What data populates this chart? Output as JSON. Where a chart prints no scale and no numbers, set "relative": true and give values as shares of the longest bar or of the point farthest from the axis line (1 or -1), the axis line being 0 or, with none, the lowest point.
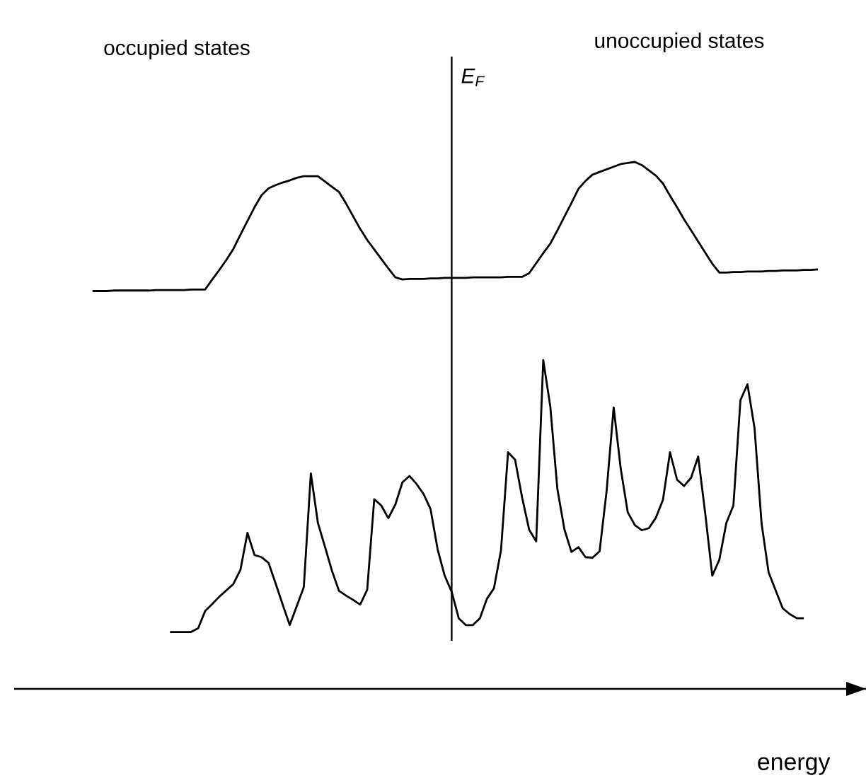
{
  "chart_data": {
    "type": "line",
    "relative": true,
    "xlabel": "energy",
    "annotations": [
      "occupied states",
      "unoccupied states",
      "E$_{F}$"
    ],
    "categories": [
      null,
      null,
      null,
      null,
      null,
      null,
      null,
      null,
      null,
      null,
      null,
      null,
      null,
      null,
      null,
      null,
      null,
      null,
      null,
      null,
      null,
      null,
      null,
      null,
      null,
      null,
      null,
      null,
      null,
      null,
      null,
      null,
      null,
      null,
      null,
      null,
      null,
      null,
      null,
      null,
      null,
      null,
      null,
      null,
      null,
      null,
      null,
      null,
      null,
      null,
      null,
      null,
      null,
      null,
      null,
      null,
      null,
      null,
      null,
      null,
      null,
      null,
      null,
      null,
      null,
      null,
      null,
      null,
      null,
      null,
      null,
      null,
      null,
      null,
      null,
      null,
      null,
      null,
      null,
      null,
      null,
      null,
      null,
      null,
      null,
      null,
      null,
      null,
      null,
      null,
      null,
      null,
      null,
      null,
      null,
      null,
      null,
      null,
      null,
      null,
      null,
      null,
      null,
      null,
      null
    ],
    "series": [
      {
        "color": "#000000",
        "values": [
          0.755,
          0.755,
          0.755,
          0.756,
          0.756,
          0.756,
          0.756,
          0.756,
          0.756,
          0.757,
          0.757,
          0.757,
          0.757,
          0.757,
          0.758,
          0.758,
          0.758,
          0.777,
          0.795,
          0.814,
          0.835,
          0.862,
          0.888,
          0.914,
          0.937,
          0.95,
          0.956,
          0.961,
          0.965,
          0.97,
          0.973,
          0.973,
          0.973,
          0.963,
          0.953,
          0.943,
          0.921,
          0.897,
          0.873,
          0.852,
          0.834,
          0.816,
          0.798,
          0.781,
          0.777,
          0.778,
          0.778,
          0.778,
          0.779,
          0.779,
          0.78,
          0.78,
          0.78,
          0.78,
          0.781,
          0.781,
          0.781,
          0.781,
          0.781,
          0.782,
          0.782,
          0.782,
          0.789,
          0.808,
          0.827,
          0.845,
          0.87,
          0.896,
          0.922,
          0.949,
          0.964,
          0.976,
          0.981,
          0.986,
          0.991,
          0.996,
          0.998,
          1,
          0.994,
          0.984,
          0.974,
          0.959,
          0.936,
          0.914,
          0.891,
          0.87,
          0.849,
          0.828,
          0.807,
          0.79,
          0.79,
          0.791,
          0.791,
          0.792,
          0.792,
          0.792,
          0.793,
          0.793,
          0.794,
          0.794,
          0.794,
          0.795,
          0.795,
          0.796,
          null
        ]
      },
      {
        "color": "#000000",
        "values": [
          null,
          null,
          null,
          null,
          null,
          null,
          null,
          null,
          null,
          null,
          null,
          0.108,
          0.108,
          0.108,
          0.108,
          0.115,
          0.148,
          0.161,
          0.175,
          0.187,
          0.199,
          0.226,
          0.296,
          0.254,
          0.25,
          0.239,
          0.2,
          0.16,
          0.121,
          0.157,
          0.193,
          0.409,
          0.315,
          0.27,
          0.224,
          0.186,
          0.177,
          0.169,
          0.16,
          0.188,
          0.36,
          0.348,
          0.324,
          0.35,
          0.392,
          0.404,
          0.389,
          0.37,
          0.341,
          0.265,
          0.215,
          0.184,
          0.134,
          0.121,
          0.121,
          0.134,
          0.171,
          0.191,
          0.263,
          0.449,
          0.435,
          0.363,
          0.302,
          0.28,
          0.624,
          0.536,
          0.38,
          0.303,
          0.26,
          0.269,
          0.25,
          0.249,
          0.261,
          0.376,
          0.534,
          0.418,
          0.335,
          0.311,
          0.301,
          0.305,
          0.325,
          0.359,
          0.449,
          0.397,
          0.385,
          0.401,
          0.441,
          0.333,
          0.215,
          0.245,
          0.315,
          0.348,
          0.548,
          0.578,
          0.495,
          0.314,
          0.221,
          0.187,
          0.153,
          0.142,
          0.134,
          0.134,
          null,
          null,
          null
        ]
      }
    ]
  }
}
